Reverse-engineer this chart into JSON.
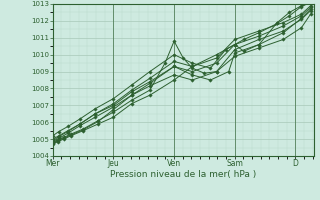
{
  "title": "",
  "xlabel": "Pression niveau de la mer( hPa )",
  "background_color": "#ceeae0",
  "grid_color_major": "#a8c8b8",
  "grid_color_minor": "#b8d8c8",
  "line_color": "#2d6030",
  "marker_color": "#2d6030",
  "ylim": [
    1004,
    1013
  ],
  "yticks": [
    1004,
    1005,
    1006,
    1007,
    1008,
    1009,
    1010,
    1011,
    1012,
    1013
  ],
  "xtick_labels": [
    "Mer",
    "Jeu",
    "Ven",
    "Sam",
    "D"
  ],
  "xtick_positions": [
    0,
    1,
    2,
    3,
    4
  ],
  "xlim": [
    0,
    4.3
  ],
  "lines": [
    {
      "x": [
        0.0,
        0.08,
        0.18,
        0.3,
        0.5,
        0.75,
        1.0,
        1.3,
        1.6,
        2.0,
        2.3,
        2.7,
        3.0,
        3.4,
        3.8,
        4.1,
        4.25
      ],
      "y": [
        1004.7,
        1004.85,
        1005.0,
        1005.2,
        1005.5,
        1005.9,
        1006.3,
        1007.1,
        1007.6,
        1008.5,
        1009.3,
        1010.0,
        1010.6,
        1011.1,
        1011.7,
        1012.3,
        1012.8
      ]
    },
    {
      "x": [
        0.0,
        0.08,
        0.18,
        0.3,
        0.5,
        0.75,
        1.0,
        1.3,
        1.6,
        1.85,
        2.0,
        2.15,
        2.3,
        2.5,
        2.7,
        3.0,
        3.4,
        3.8,
        4.1,
        4.25
      ],
      "y": [
        1004.8,
        1004.95,
        1005.1,
        1005.3,
        1005.6,
        1006.1,
        1006.6,
        1007.3,
        1007.9,
        1009.5,
        1010.8,
        1009.8,
        1009.2,
        1008.9,
        1009.0,
        1010.3,
        1010.9,
        1011.4,
        1012.1,
        1012.6
      ]
    },
    {
      "x": [
        0.0,
        0.08,
        0.18,
        0.3,
        0.5,
        0.75,
        1.0,
        1.3,
        1.6,
        2.0,
        2.3,
        2.6,
        2.9,
        3.0,
        3.4,
        3.8,
        4.1,
        4.25
      ],
      "y": [
        1004.75,
        1004.9,
        1005.05,
        1005.25,
        1005.55,
        1006.05,
        1006.75,
        1007.6,
        1008.3,
        1009.3,
        1008.8,
        1008.5,
        1009.0,
        1010.1,
        1010.6,
        1011.3,
        1012.15,
        1012.7
      ]
    },
    {
      "x": [
        0.0,
        0.1,
        0.25,
        0.45,
        0.7,
        1.0,
        1.3,
        1.6,
        2.0,
        2.3,
        2.7,
        3.0,
        3.4,
        3.8,
        4.1,
        4.25
      ],
      "y": [
        1005.0,
        1005.2,
        1005.5,
        1005.9,
        1006.5,
        1007.1,
        1007.9,
        1008.6,
        1009.6,
        1009.3,
        1009.8,
        1010.9,
        1011.4,
        1011.9,
        1012.4,
        1012.9
      ]
    },
    {
      "x": [
        0.0,
        0.1,
        0.25,
        0.45,
        0.7,
        1.0,
        1.3,
        1.6,
        2.0,
        2.3,
        2.6,
        2.85,
        3.0,
        3.15,
        3.4,
        3.7,
        3.9,
        4.1,
        4.25
      ],
      "y": [
        1005.2,
        1005.45,
        1005.75,
        1006.2,
        1006.8,
        1007.4,
        1008.2,
        1009.0,
        1010.0,
        1009.5,
        1009.2,
        1010.3,
        1010.6,
        1010.2,
        1010.6,
        1011.9,
        1012.5,
        1012.9,
        1013.05
      ]
    },
    {
      "x": [
        0.0,
        0.1,
        0.25,
        0.45,
        0.7,
        1.0,
        1.3,
        1.6,
        2.0,
        2.3,
        2.7,
        3.0,
        3.15,
        3.4,
        3.7,
        3.9,
        4.1,
        4.25
      ],
      "y": [
        1004.9,
        1005.15,
        1005.45,
        1005.9,
        1006.5,
        1007.0,
        1007.8,
        1008.4,
        1009.3,
        1009.0,
        1009.5,
        1010.6,
        1010.9,
        1011.3,
        1011.85,
        1012.3,
        1012.85,
        1013.1
      ]
    },
    {
      "x": [
        0.0,
        0.1,
        0.25,
        0.45,
        0.7,
        1.0,
        1.3,
        1.6,
        2.0,
        2.3,
        2.7,
        3.0,
        3.4,
        3.8,
        4.1,
        4.25
      ],
      "y": [
        1004.85,
        1005.05,
        1005.35,
        1005.8,
        1006.3,
        1006.9,
        1007.6,
        1008.15,
        1008.8,
        1008.5,
        1009.0,
        1009.9,
        1010.4,
        1010.9,
        1011.6,
        1012.4
      ]
    }
  ]
}
